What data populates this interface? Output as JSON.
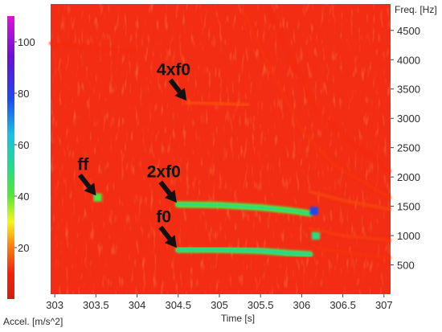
{
  "chart_data": {
    "type": "heatmap",
    "x_axis": {
      "label": "Time [s]",
      "range": [
        302.95,
        307.08
      ],
      "ticks": [
        303,
        303.5,
        304,
        304.5,
        305,
        305.5,
        306,
        306.5,
        307
      ]
    },
    "y_axis": {
      "label": "Freq. [Hz]",
      "range": [
        0,
        4950
      ],
      "ticks": [
        500,
        1000,
        1500,
        2000,
        2500,
        3000,
        3500,
        4000,
        4500
      ],
      "side": "right"
    },
    "colorbar": {
      "label": "Accel. [m/s^2]",
      "range": [
        0,
        110
      ],
      "ticks": [
        20,
        40,
        60,
        80,
        100
      ],
      "side": "left",
      "stops": [
        {
          "value": 0,
          "color": "#d41f0f"
        },
        {
          "value": 10,
          "color": "#f4200e"
        },
        {
          "value": 20,
          "color": "#fd7a10"
        },
        {
          "value": 30,
          "color": "#f7f51b"
        },
        {
          "value": 40,
          "color": "#55e836"
        },
        {
          "value": 52,
          "color": "#22d98e"
        },
        {
          "value": 64,
          "color": "#18c2e3"
        },
        {
          "value": 78,
          "color": "#1e46f2"
        },
        {
          "value": 94,
          "color": "#6a0fd6"
        },
        {
          "value": 110,
          "color": "#dd14d6"
        }
      ]
    },
    "background_color": "#f22d13",
    "features": [
      {
        "label": "f0",
        "type": "line",
        "points": [
          [
            304.5,
            760
          ],
          [
            305.0,
            760
          ],
          [
            305.5,
            740
          ],
          [
            305.85,
            700
          ],
          [
            306.1,
            680
          ]
        ],
        "peak_value": 45
      },
      {
        "label": "2xf0",
        "type": "line",
        "points": [
          [
            304.5,
            1530
          ],
          [
            305.0,
            1520
          ],
          [
            305.5,
            1480
          ],
          [
            305.85,
            1430
          ],
          [
            306.1,
            1380
          ]
        ],
        "peak_value": 42
      },
      {
        "label": "4xf0",
        "type": "line",
        "points": [
          [
            304.6,
            3270
          ],
          [
            305.0,
            3250
          ],
          [
            305.35,
            3230
          ]
        ],
        "peak_value": 15
      },
      {
        "label": "ff",
        "type": "spot",
        "points": [
          [
            303.52,
            1650
          ]
        ],
        "peak_value": 42
      },
      {
        "label": "",
        "type": "spot",
        "points": [
          [
            306.15,
            1420
          ]
        ],
        "peak_value": 78
      },
      {
        "label": "",
        "type": "spot",
        "points": [
          [
            306.17,
            1000
          ]
        ],
        "peak_value": 50
      },
      {
        "label": "",
        "type": "line",
        "points": [
          [
            306.15,
            100
          ],
          [
            306.15,
            4950
          ]
        ],
        "peak_value": 18
      },
      {
        "label": "",
        "type": "line",
        "points": [
          [
            305.3,
            4800
          ],
          [
            305.7,
            3600
          ],
          [
            306.0,
            2800
          ],
          [
            306.4,
            2200
          ],
          [
            307.07,
            1650
          ]
        ],
        "peak_value": 12
      },
      {
        "label": "",
        "type": "line",
        "points": [
          [
            305.6,
            4900
          ],
          [
            305.9,
            3900
          ],
          [
            306.2,
            3100
          ],
          [
            306.6,
            2600
          ],
          [
            307.07,
            2100
          ]
        ],
        "peak_value": 11
      },
      {
        "label": "",
        "type": "line",
        "points": [
          [
            306.1,
            1750
          ],
          [
            306.5,
            1600
          ],
          [
            307.07,
            1450
          ]
        ],
        "peak_value": 14
      },
      {
        "label": "",
        "type": "line",
        "points": [
          [
            306.1,
            1120
          ],
          [
            306.5,
            1000
          ],
          [
            307.07,
            920
          ]
        ],
        "peak_value": 13
      },
      {
        "label": "",
        "type": "line",
        "points": [
          [
            306.2,
            780
          ],
          [
            306.6,
            700
          ],
          [
            307.07,
            620
          ]
        ],
        "peak_value": 12
      },
      {
        "label": "",
        "type": "line",
        "points": [
          [
            302.95,
            4280
          ],
          [
            303.5,
            4200
          ],
          [
            304.0,
            4150
          ]
        ],
        "peak_value": 11
      }
    ],
    "annotations": [
      {
        "text": "ff",
        "arrow_to": [
          303.52,
          1650
        ]
      },
      {
        "text": "2xf0",
        "arrow_to": [
          304.5,
          1530
        ]
      },
      {
        "text": "f0",
        "arrow_to": [
          304.5,
          760
        ]
      },
      {
        "text": "4xf0",
        "arrow_to": [
          304.62,
          3270
        ]
      }
    ]
  }
}
